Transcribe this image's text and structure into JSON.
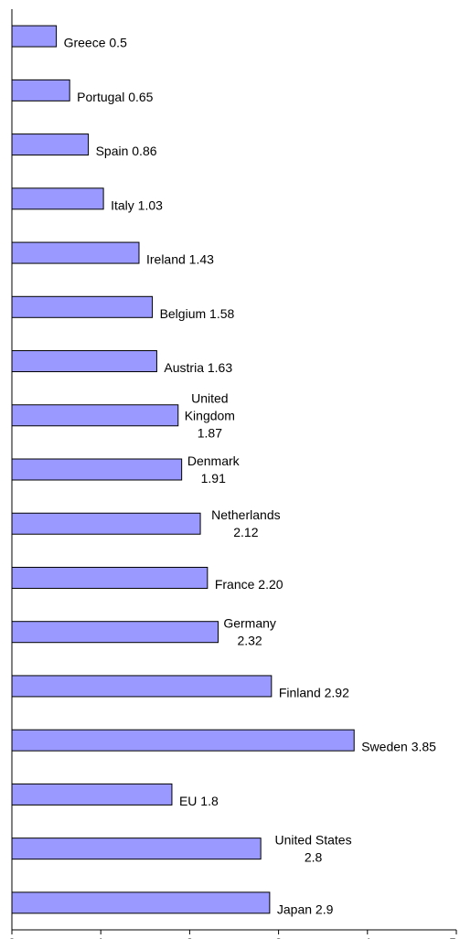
{
  "chart_data": {
    "type": "bar",
    "orientation": "horizontal",
    "categories": [
      "Greece",
      "Portugal",
      "Spain",
      "Italy",
      "Ireland",
      "Belgium",
      "Austria",
      "United Kingdom",
      "Denmark",
      "Netherlands",
      "France",
      "Germany",
      "Finland",
      "Sweden",
      "EU",
      "United States",
      "Japan"
    ],
    "values": [
      0.5,
      0.65,
      0.86,
      1.03,
      1.43,
      1.58,
      1.63,
      1.87,
      1.91,
      2.12,
      2.2,
      2.32,
      2.92,
      3.85,
      1.8,
      2.8,
      2.9
    ],
    "data_labels": [
      [
        "Greece 0.5"
      ],
      [
        "Portugal 0.65"
      ],
      [
        "Spain 0.86"
      ],
      [
        "Italy 1.03"
      ],
      [
        "Ireland 1.43"
      ],
      [
        "Belgium 1.58"
      ],
      [
        "Austria 1.63"
      ],
      [
        "United",
        "Kingdom",
        "1.87"
      ],
      [
        "Denmark",
        "1.91"
      ],
      [
        "Netherlands",
        "2.12"
      ],
      [
        "France 2.20"
      ],
      [
        "Germany",
        "2.32"
      ],
      [
        "Finland 2.92"
      ],
      [
        "Sweden 3.85"
      ],
      [
        "EU 1.8"
      ],
      [
        "United States",
        "2.8"
      ],
      [
        "Japan 2.9"
      ]
    ],
    "xlim": [
      0,
      5
    ],
    "x_ticks": [
      "0",
      "1",
      "2",
      "3",
      "4",
      "5"
    ],
    "grid": false,
    "bar_color": "#9999ff",
    "title": "",
    "xlabel": "",
    "ylabel": ""
  }
}
